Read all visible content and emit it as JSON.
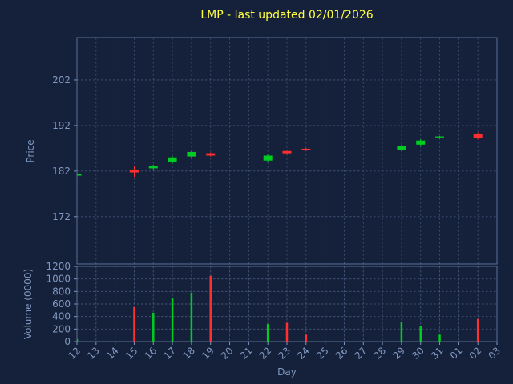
{
  "chart_data": {
    "type": "candlestick",
    "title": "LMP - last updated 02/01/2026",
    "xlabel": "Day",
    "ylabel_price": "Price",
    "ylabel_volume": "Volume (0000)",
    "categories": [
      "12",
      "13",
      "14",
      "15",
      "16",
      "17",
      "18",
      "19",
      "20",
      "21",
      "22",
      "23",
      "24",
      "25",
      "26",
      "27",
      "28",
      "29",
      "30",
      "31",
      "01",
      "02",
      "03"
    ],
    "price_ticks": [
      172,
      182,
      192,
      202
    ],
    "price_range": [
      161.6,
      211.3
    ],
    "volume_ticks": [
      0,
      200,
      400,
      600,
      800,
      1000,
      1200
    ],
    "volume_range": [
      0,
      1200
    ],
    "grid": true,
    "legend": "none",
    "colors": {
      "background": "#15203a",
      "text": "#8098c0",
      "title": "#ffff40",
      "grid": "#44547a",
      "spine": "#5c7095",
      "up": "#00cc22",
      "down": "#ff3030"
    },
    "candles": [
      {
        "day": "12",
        "open": 181.0,
        "high": 181.6,
        "low": 180.5,
        "close": 181.4,
        "volume": 40
      },
      {
        "day": "15",
        "open": 182.2,
        "high": 183.1,
        "low": 180.7,
        "close": 181.7,
        "volume": 550
      },
      {
        "day": "16",
        "open": 182.6,
        "high": 183.4,
        "low": 182.2,
        "close": 183.2,
        "volume": 460
      },
      {
        "day": "17",
        "open": 184.0,
        "high": 185.3,
        "low": 183.6,
        "close": 185.0,
        "volume": 690
      },
      {
        "day": "18",
        "open": 185.2,
        "high": 186.5,
        "low": 184.9,
        "close": 186.2,
        "volume": 780
      },
      {
        "day": "19",
        "open": 185.9,
        "high": 186.1,
        "low": 185.2,
        "close": 185.4,
        "volume": 1050
      },
      {
        "day": "22",
        "open": 184.3,
        "high": 185.7,
        "low": 184.0,
        "close": 185.4,
        "volume": 280
      },
      {
        "day": "23",
        "open": 186.4,
        "high": 186.6,
        "low": 185.6,
        "close": 185.9,
        "volume": 300
      },
      {
        "day": "24",
        "open": 186.9,
        "high": 187.1,
        "low": 186.4,
        "close": 186.6,
        "volume": 110
      },
      {
        "day": "29",
        "open": 186.6,
        "high": 187.8,
        "low": 186.3,
        "close": 187.5,
        "volume": 310
      },
      {
        "day": "30",
        "open": 187.8,
        "high": 189.0,
        "low": 187.6,
        "close": 188.7,
        "volume": 250
      },
      {
        "day": "31",
        "open": 189.4,
        "high": 189.7,
        "low": 189.1,
        "close": 189.6,
        "volume": 110
      },
      {
        "day": "02",
        "open": 190.2,
        "high": 190.5,
        "low": 188.9,
        "close": 189.2,
        "volume": 360
      }
    ]
  }
}
